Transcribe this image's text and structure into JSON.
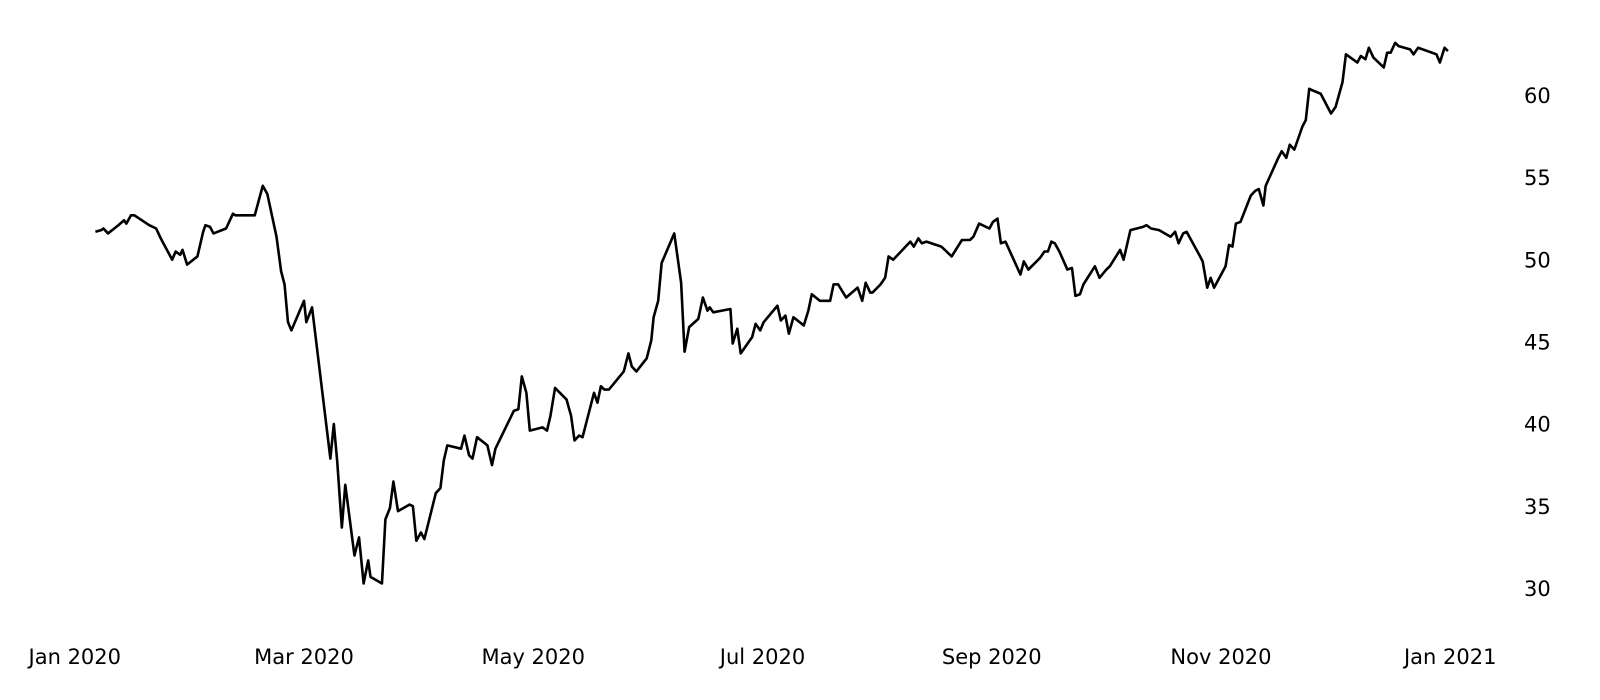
{
  "chart_data": {
    "type": "line",
    "color": "#000000",
    "x": [
      0.18,
      0.23,
      0.25,
      0.29,
      0.38,
      0.43,
      0.45,
      0.49,
      0.52,
      0.65,
      0.71,
      0.75,
      0.85,
      0.88,
      0.92,
      0.94,
      0.98,
      1.07,
      1.12,
      1.14,
      1.18,
      1.21,
      1.32,
      1.38,
      1.4,
      1.57,
      1.64,
      1.68,
      1.76,
      1.8,
      1.83,
      1.86,
      1.89,
      2.0,
      2.02,
      2.07,
      2.23,
      2.26,
      2.29,
      2.33,
      2.36,
      2.44,
      2.48,
      2.52,
      2.56,
      2.58,
      2.68,
      2.71,
      2.75,
      2.78,
      2.82,
      2.92,
      2.95,
      2.98,
      3.02,
      3.05,
      3.15,
      3.19,
      3.22,
      3.25,
      3.37,
      3.4,
      3.44,
      3.47,
      3.51,
      3.6,
      3.64,
      3.67,
      3.83,
      3.87,
      3.9,
      3.94,
      3.97,
      4.08,
      4.12,
      4.15,
      4.19,
      4.29,
      4.33,
      4.36,
      4.4,
      4.43,
      4.53,
      4.56,
      4.59,
      4.62,
      4.66,
      4.79,
      4.83,
      4.86,
      4.9,
      4.99,
      5.03,
      5.05,
      5.09,
      5.12,
      5.23,
      5.29,
      5.32,
      5.36,
      5.44,
      5.48,
      5.52,
      5.54,
      5.57,
      5.72,
      5.74,
      5.78,
      5.81,
      5.91,
      5.94,
      5.98,
      6.01,
      6.13,
      6.16,
      6.2,
      6.23,
      6.27,
      6.36,
      6.4,
      6.43,
      6.5,
      6.59,
      6.62,
      6.66,
      6.73,
      6.83,
      6.87,
      6.9,
      6.94,
      6.96,
      7.03,
      7.07,
      7.1,
      7.14,
      7.29,
      7.32,
      7.36,
      7.39,
      7.43,
      7.56,
      7.59,
      7.65,
      7.74,
      7.81,
      7.84,
      7.89,
      7.98,
      8.01,
      8.05,
      8.08,
      8.12,
      8.25,
      8.28,
      8.32,
      8.42,
      8.46,
      8.49,
      8.52,
      8.55,
      8.59,
      8.66,
      8.7,
      8.73,
      8.77,
      8.8,
      8.9,
      8.94,
      9.0,
      9.03,
      9.12,
      9.15,
      9.21,
      9.32,
      9.35,
      9.39,
      9.46,
      9.56,
      9.6,
      9.63,
      9.67,
      9.7,
      9.81,
      9.84,
      9.88,
      9.91,
      9.94,
      10.04,
      10.07,
      10.1,
      10.13,
      10.17,
      10.26,
      10.3,
      10.33,
      10.37,
      10.39,
      10.5,
      10.53,
      10.57,
      10.6,
      10.64,
      10.71,
      10.74,
      10.77,
      10.8,
      10.87,
      10.96,
      11.0,
      11.06,
      11.09,
      11.19,
      11.22,
      11.26,
      11.29,
      11.33,
      11.42,
      11.45,
      11.48,
      11.52,
      11.55,
      11.65,
      11.68,
      11.72,
      11.88,
      11.91,
      11.95,
      11.98
    ],
    "values": [
      51.8,
      51.9,
      52.0,
      51.7,
      52.2,
      52.5,
      52.3,
      52.8,
      52.8,
      52.2,
      52.0,
      51.4,
      50.1,
      50.6,
      50.4,
      50.7,
      49.8,
      50.3,
      51.8,
      52.2,
      52.1,
      51.7,
      52.0,
      52.9,
      52.8,
      52.8,
      54.6,
      54.1,
      51.5,
      49.4,
      48.6,
      46.3,
      45.8,
      47.6,
      46.3,
      47.2,
      38.0,
      40.1,
      37.8,
      33.8,
      36.4,
      32.1,
      33.2,
      30.4,
      31.8,
      30.8,
      30.4,
      34.3,
      35.0,
      36.6,
      34.8,
      35.2,
      35.1,
      33.0,
      33.5,
      33.1,
      35.9,
      36.2,
      37.9,
      38.8,
      38.6,
      39.4,
      38.2,
      38.0,
      39.3,
      38.8,
      37.6,
      38.6,
      40.9,
      41.0,
      43.0,
      42.0,
      39.7,
      39.9,
      39.7,
      40.6,
      42.3,
      41.6,
      40.6,
      39.1,
      39.4,
      39.3,
      42.0,
      41.4,
      42.4,
      42.2,
      42.2,
      43.3,
      44.4,
      43.6,
      43.3,
      44.1,
      45.2,
      46.6,
      47.6,
      49.9,
      51.7,
      48.7,
      44.5,
      46.0,
      46.5,
      47.8,
      47.0,
      47.2,
      46.9,
      47.1,
      45.0,
      45.9,
      44.4,
      45.4,
      46.2,
      45.8,
      46.3,
      47.3,
      46.4,
      46.7,
      45.6,
      46.6,
      46.1,
      47.0,
      48.0,
      47.6,
      47.6,
      48.6,
      48.6,
      47.8,
      48.4,
      47.6,
      48.7,
      48.1,
      48.1,
      48.6,
      49.0,
      50.3,
      50.1,
      51.2,
      50.9,
      51.4,
      51.1,
      51.2,
      50.9,
      50.7,
      50.3,
      51.3,
      51.3,
      51.5,
      52.3,
      52.0,
      52.4,
      52.6,
      51.1,
      51.2,
      49.2,
      50.0,
      49.5,
      50.2,
      50.6,
      50.6,
      51.2,
      51.1,
      50.6,
      49.5,
      49.6,
      47.9,
      48.0,
      48.6,
      49.7,
      49.0,
      49.5,
      49.7,
      50.7,
      50.1,
      51.9,
      52.1,
      52.2,
      52.0,
      51.9,
      51.5,
      51.8,
      51.1,
      51.7,
      51.8,
      50.4,
      50.0,
      48.4,
      49.0,
      48.4,
      49.7,
      51.0,
      50.9,
      52.3,
      52.4,
      54.0,
      54.3,
      54.4,
      53.4,
      54.6,
      56.3,
      56.7,
      56.3,
      57.1,
      56.8,
      58.2,
      58.6,
      60.5,
      60.4,
      60.2,
      59.0,
      59.4,
      60.9,
      62.6,
      62.1,
      62.5,
      62.3,
      63.0,
      62.4,
      61.8,
      62.7,
      62.7,
      63.3,
      63.1,
      62.9,
      62.6,
      63.0,
      62.6,
      62.1,
      63.0,
      62.8
    ],
    "xlim": [
      -0.6,
      12.6
    ],
    "xticks": [
      {
        "value": 0,
        "label": "Jan 2020"
      },
      {
        "value": 2,
        "label": "Mar 2020"
      },
      {
        "value": 4,
        "label": "May 2020"
      },
      {
        "value": 6,
        "label": "Jul 2020"
      },
      {
        "value": 8,
        "label": "Sep 2020"
      },
      {
        "value": 10,
        "label": "Nov 2020"
      },
      {
        "value": 12,
        "label": "Jan 2021"
      }
    ],
    "ylim": [
      28.65,
      64.95
    ],
    "yticks": [
      30,
      35,
      40,
      45,
      50,
      55,
      60
    ],
    "grid": false
  }
}
